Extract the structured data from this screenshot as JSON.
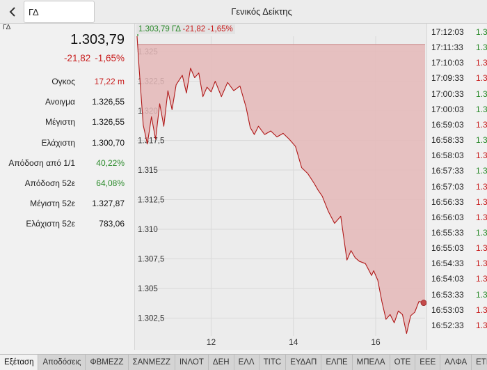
{
  "header": {
    "symbol": "ΓΔ",
    "title": "Γενικός Δείκτης"
  },
  "side_tag": "ΓΔ",
  "summary": {
    "price": "1.303,79",
    "change_abs": "-21,82",
    "change_pct": "-1,65%",
    "stats": [
      {
        "label": "Ογκος",
        "value": "17,22 m",
        "tone": "red"
      },
      {
        "label": "Ανοιγμα",
        "value": "1.326,55",
        "tone": "neutral"
      },
      {
        "label": "Μέγιστη",
        "value": "1.326,55",
        "tone": "neutral"
      },
      {
        "label": "Ελάχιστη",
        "value": "1.300,70",
        "tone": "neutral"
      },
      {
        "label": "Απόδοση από 1/1",
        "value": "40,22%",
        "tone": "green"
      },
      {
        "label": "Απόδοση 52ε",
        "value": "64,08%",
        "tone": "green"
      },
      {
        "label": "Μέγιστη 52ε",
        "value": "1.327,87",
        "tone": "neutral"
      },
      {
        "label": "Ελάχιστη 52ε",
        "value": "783,06",
        "tone": "neutral"
      }
    ]
  },
  "chart_head": {
    "price": "1.303,79",
    "symbol": "ΓΔ",
    "change_abs": "-21,82",
    "change_pct": "-1,65%"
  },
  "chart_data": {
    "type": "area",
    "ylim": [
      1301.0,
      1326.3
    ],
    "reference_line": 1325.61,
    "y_ticks": [
      {
        "value": 1325.0,
        "label": "1.325"
      },
      {
        "value": 1322.5,
        "label": "1.322,5"
      },
      {
        "value": 1320.0,
        "label": "1.320"
      },
      {
        "value": 1317.5,
        "label": "1.317,5"
      },
      {
        "value": 1315.0,
        "label": "1.315"
      },
      {
        "value": 1312.5,
        "label": "1.312,5"
      },
      {
        "value": 1310.0,
        "label": "1.310"
      },
      {
        "value": 1307.5,
        "label": "1.307,5"
      },
      {
        "value": 1305.0,
        "label": "1.305"
      },
      {
        "value": 1302.5,
        "label": "1.302,5"
      }
    ],
    "xlim": [
      10.2,
      17.2
    ],
    "x_ticks": [
      {
        "value": 12,
        "label": "12"
      },
      {
        "value": 14,
        "label": "14"
      },
      {
        "value": 16,
        "label": "16"
      }
    ],
    "x": [
      10.2,
      10.25,
      10.35,
      10.45,
      10.55,
      10.65,
      10.75,
      10.85,
      10.95,
      11.05,
      11.15,
      11.3,
      11.4,
      11.5,
      11.6,
      11.7,
      11.8,
      11.9,
      12.0,
      12.1,
      12.25,
      12.4,
      12.55,
      12.7,
      12.85,
      12.95,
      13.05,
      13.15,
      13.3,
      13.45,
      13.6,
      13.75,
      13.9,
      14.05,
      14.2,
      14.35,
      14.5,
      14.6,
      14.7,
      14.85,
      15.0,
      15.15,
      15.3,
      15.4,
      15.5,
      15.6,
      15.75,
      15.9,
      15.95,
      16.05,
      16.15,
      16.25,
      16.35,
      16.45,
      16.55,
      16.65,
      16.75,
      16.85,
      16.95,
      17.05,
      17.2
    ],
    "y": [
      1326.3,
      1323.6,
      1318.8,
      1317.2,
      1319.5,
      1317.6,
      1320.6,
      1318.7,
      1321.7,
      1320.1,
      1322.2,
      1323.0,
      1321.5,
      1323.6,
      1322.8,
      1323.2,
      1321.2,
      1322.0,
      1321.6,
      1322.5,
      1321.2,
      1322.4,
      1321.7,
      1322.1,
      1320.3,
      1318.6,
      1318.0,
      1318.7,
      1318.0,
      1318.3,
      1317.8,
      1318.1,
      1317.6,
      1317.0,
      1315.2,
      1314.7,
      1313.9,
      1313.3,
      1312.8,
      1311.5,
      1310.5,
      1311.1,
      1307.4,
      1308.2,
      1307.6,
      1307.3,
      1307.1,
      1306.1,
      1306.5,
      1305.7,
      1303.9,
      1302.4,
      1302.8,
      1302.1,
      1303.1,
      1302.8,
      1301.2,
      1302.7,
      1303.0,
      1303.9,
      1303.79
    ],
    "colors": {
      "line": "#b01818",
      "fill": "#e5b9b9",
      "grid": "#d9d9d9"
    }
  },
  "trades": [
    {
      "time": "17:12:03",
      "digit": "1.3",
      "tone": "green"
    },
    {
      "time": "17:11:33",
      "digit": "1.3",
      "tone": "green"
    },
    {
      "time": "17:10:03",
      "digit": "1.3",
      "tone": "red"
    },
    {
      "time": "17:09:33",
      "digit": "1.3",
      "tone": "red"
    },
    {
      "time": "17:00:33",
      "digit": "1.3",
      "tone": "green"
    },
    {
      "time": "17:00:03",
      "digit": "1.3",
      "tone": "green"
    },
    {
      "time": "16:59:03",
      "digit": "1.3",
      "tone": "red"
    },
    {
      "time": "16:58:33",
      "digit": "1.3",
      "tone": "green"
    },
    {
      "time": "16:58:03",
      "digit": "1.3",
      "tone": "red"
    },
    {
      "time": "16:57:33",
      "digit": "1.3",
      "tone": "green"
    },
    {
      "time": "16:57:03",
      "digit": "1.3",
      "tone": "red"
    },
    {
      "time": "16:56:33",
      "digit": "1.3",
      "tone": "red"
    },
    {
      "time": "16:56:03",
      "digit": "1.3",
      "tone": "red"
    },
    {
      "time": "16:55:33",
      "digit": "1.3",
      "tone": "green"
    },
    {
      "time": "16:55:03",
      "digit": "1.3",
      "tone": "red"
    },
    {
      "time": "16:54:33",
      "digit": "1.3",
      "tone": "red"
    },
    {
      "time": "16:54:03",
      "digit": "1.3",
      "tone": "red"
    },
    {
      "time": "16:53:33",
      "digit": "1.3",
      "tone": "green"
    },
    {
      "time": "16:53:03",
      "digit": "1.3",
      "tone": "red"
    },
    {
      "time": "16:52:33",
      "digit": "1.3",
      "tone": "red"
    }
  ],
  "tabs": [
    {
      "label": "Εξέταση",
      "active": true
    },
    {
      "label": "Αποδόσεις",
      "active": false
    },
    {
      "label": "ΦΒΜΕΖΖ",
      "active": false
    },
    {
      "label": "ΣΑΝΜΕΖΖ",
      "active": false
    },
    {
      "label": "ΙΝΛΟΤ",
      "active": false
    },
    {
      "label": "ΔΕΗ",
      "active": false
    },
    {
      "label": "ΕΛΛ",
      "active": false
    },
    {
      "label": "TITC",
      "active": false
    },
    {
      "label": "ΕΥΔΑΠ",
      "active": false
    },
    {
      "label": "ΕΛΠΕ",
      "active": false
    },
    {
      "label": "ΜΠΕΛΑ",
      "active": false
    },
    {
      "label": "ΟΤΕ",
      "active": false
    },
    {
      "label": "ΕΕΕ",
      "active": false
    },
    {
      "label": "ΑΛΦΑ",
      "active": false
    },
    {
      "label": "ΕΤΕ",
      "active": false
    }
  ],
  "icons": {
    "back": "back-arrow-icon"
  }
}
